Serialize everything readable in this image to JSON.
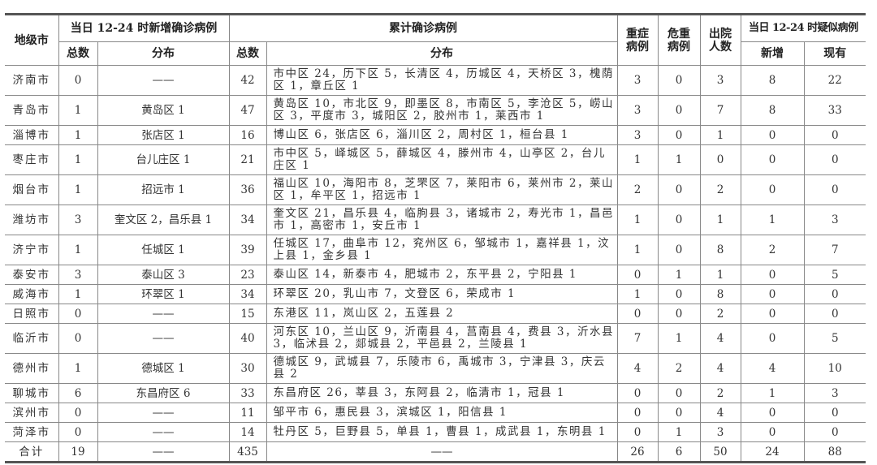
{
  "headers": {
    "city": "地级市",
    "new_group": "当日 12-24 时新增确诊病例",
    "cum_group": "累计确诊病例",
    "severe": "重症病例",
    "critical": "危重病例",
    "discharged": "出院人数",
    "suspect_group": "当日 12-24 时疑似病例",
    "total": "总数",
    "distribution": "分布",
    "suspect_new": "新增",
    "suspect_current": "现有"
  },
  "rows": [
    {
      "city": "济南市",
      "new_total": "0",
      "new_dist": "——",
      "cum_total": "42",
      "cum_dist": "市中区 24，历下区 5，长清区 4，历城区 4，天桥区 3，槐荫区 1，章丘区 1",
      "severe": "3",
      "critical": "0",
      "discharged": "3",
      "s_new": "8",
      "s_cur": "22",
      "lines": 2
    },
    {
      "city": "青岛市",
      "new_total": "1",
      "new_dist": "黄岛区 1",
      "cum_total": "47",
      "cum_dist": "黄岛区 10，市北区 9，即墨区 8，市南区 5，李沧区 5，崂山区 3，平度市 3，城阳区 2，胶州市 1，莱西市 1",
      "severe": "3",
      "critical": "0",
      "discharged": "7",
      "s_new": "8",
      "s_cur": "33",
      "lines": 2
    },
    {
      "city": "淄博市",
      "new_total": "1",
      "new_dist": "张店区 1",
      "cum_total": "16",
      "cum_dist": "博山区 6，张店区 6，淄川区 2，周村区 1，桓台县 1",
      "severe": "3",
      "critical": "0",
      "discharged": "1",
      "s_new": "0",
      "s_cur": "0",
      "lines": 1
    },
    {
      "city": "枣庄市",
      "new_total": "1",
      "new_dist": "台儿庄区 1",
      "cum_total": "21",
      "cum_dist": "市中区 5，峄城区 5，薛城区 4，滕州市 4，山亭区 2，台儿庄区 1",
      "severe": "1",
      "critical": "1",
      "discharged": "0",
      "s_new": "0",
      "s_cur": "0",
      "lines": 2
    },
    {
      "city": "烟台市",
      "new_total": "1",
      "new_dist": "招远市 1",
      "cum_total": "36",
      "cum_dist": "福山区 10，海阳市 8，芝罘区 7，莱阳市 6，莱州市 2，莱山区 1，牟平区 1，招远市 1",
      "severe": "2",
      "critical": "0",
      "discharged": "2",
      "s_new": "0",
      "s_cur": "0",
      "lines": 2
    },
    {
      "city": "潍坊市",
      "new_total": "3",
      "new_dist": "奎文区 2，昌乐县 1",
      "cum_total": "34",
      "cum_dist": "奎文区 21，昌乐县 4，临朐县 3，诸城市 2，寿光市 1，昌邑市 1，高密市 1，安丘市 1",
      "severe": "1",
      "critical": "0",
      "discharged": "1",
      "s_new": "1",
      "s_cur": "3",
      "lines": 2
    },
    {
      "city": "济宁市",
      "new_total": "1",
      "new_dist": "任城区 1",
      "cum_total": "39",
      "cum_dist": "任城区 17，曲阜市 12，兖州区 6，邹城市 1，嘉祥县 1，汶上县 1，金乡县 1",
      "severe": "1",
      "critical": "0",
      "discharged": "8",
      "s_new": "2",
      "s_cur": "7",
      "lines": 2
    },
    {
      "city": "泰安市",
      "new_total": "3",
      "new_dist": "泰山区 3",
      "cum_total": "23",
      "cum_dist": "泰山区 14，新泰市 4，肥城市 2，东平县 2，宁阳县 1",
      "severe": "0",
      "critical": "1",
      "discharged": "1",
      "s_new": "0",
      "s_cur": "5",
      "lines": 1
    },
    {
      "city": "威海市",
      "new_total": "1",
      "new_dist": "环翠区 1",
      "cum_total": "34",
      "cum_dist": "环翠区 20，乳山市 7，文登区 6，荣成市 1",
      "severe": "1",
      "critical": "0",
      "discharged": "8",
      "s_new": "0",
      "s_cur": "0",
      "lines": 1
    },
    {
      "city": "日照市",
      "new_total": "0",
      "new_dist": "——",
      "cum_total": "15",
      "cum_dist": "东港区 11，岚山区 2，五莲县 2",
      "severe": "0",
      "critical": "0",
      "discharged": "2",
      "s_new": "0",
      "s_cur": "0",
      "lines": 1
    },
    {
      "city": "临沂市",
      "new_total": "0",
      "new_dist": "——",
      "cum_total": "40",
      "cum_dist": "河东区 10，兰山区 9，沂南县 4，莒南县 4，费县 3，沂水县 3，临沭县 2，郯城县 2，平邑县 2，兰陵县 1",
      "severe": "7",
      "critical": "1",
      "discharged": "4",
      "s_new": "0",
      "s_cur": "5",
      "lines": 2
    },
    {
      "city": "德州市",
      "new_total": "1",
      "new_dist": "德城区 1",
      "cum_total": "30",
      "cum_dist": "德城区 9，武城县 7，乐陵市 6，禹城市 3，宁津县 3，庆云县 2",
      "severe": "4",
      "critical": "2",
      "discharged": "4",
      "s_new": "4",
      "s_cur": "10",
      "lines": 2
    },
    {
      "city": "聊城市",
      "new_total": "6",
      "new_dist": "东昌府区 6",
      "cum_total": "33",
      "cum_dist": "东昌府区 26，莘县 3，东阿县 2，临清市 1，冠县 1",
      "severe": "0",
      "critical": "0",
      "discharged": "2",
      "s_new": "1",
      "s_cur": "3",
      "lines": 1
    },
    {
      "city": "滨州市",
      "new_total": "0",
      "new_dist": "——",
      "cum_total": "11",
      "cum_dist": "邹平市 6，惠民县 3，滨城区 1，阳信县 1",
      "severe": "0",
      "critical": "0",
      "discharged": "4",
      "s_new": "0",
      "s_cur": "0",
      "lines": 1
    },
    {
      "city": "菏泽市",
      "new_total": "0",
      "new_dist": "——",
      "cum_total": "14",
      "cum_dist": "牡丹区 5，巨野县 5，单县 1，曹县 1，成武县 1，东明县 1",
      "severe": "0",
      "critical": "1",
      "discharged": "3",
      "s_new": "0",
      "s_cur": "0",
      "lines": 1
    }
  ],
  "total_row": {
    "city": "合计",
    "new_total": "19",
    "new_dist": "——",
    "cum_total": "435",
    "cum_dist": "——",
    "severe": "26",
    "critical": "6",
    "discharged": "50",
    "s_new": "24",
    "s_cur": "88"
  }
}
